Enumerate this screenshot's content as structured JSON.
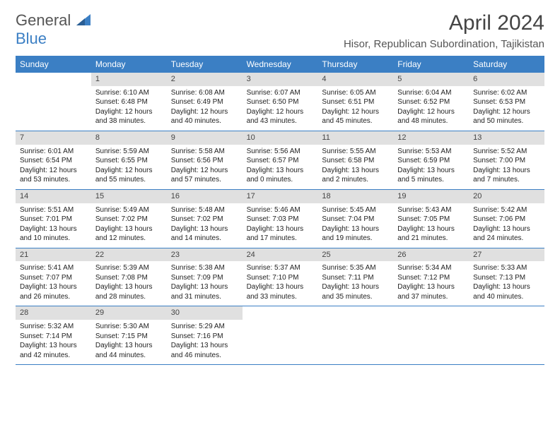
{
  "logo": {
    "text1": "General",
    "text2": "Blue"
  },
  "title": "April 2024",
  "location": "Hisor, Republican Subordination, Tajikistan",
  "colors": {
    "header_bg": "#3b7fc4",
    "header_text": "#ffffff",
    "daybar_bg": "#e0e0e0",
    "border": "#3b7fc4",
    "body_text": "#222222",
    "title_text": "#444444"
  },
  "weekdays": [
    "Sunday",
    "Monday",
    "Tuesday",
    "Wednesday",
    "Thursday",
    "Friday",
    "Saturday"
  ],
  "weeks": [
    [
      {
        "n": "",
        "sr": "",
        "ss": "",
        "d1": "",
        "d2": ""
      },
      {
        "n": "1",
        "sr": "Sunrise: 6:10 AM",
        "ss": "Sunset: 6:48 PM",
        "d1": "Daylight: 12 hours",
        "d2": "and 38 minutes."
      },
      {
        "n": "2",
        "sr": "Sunrise: 6:08 AM",
        "ss": "Sunset: 6:49 PM",
        "d1": "Daylight: 12 hours",
        "d2": "and 40 minutes."
      },
      {
        "n": "3",
        "sr": "Sunrise: 6:07 AM",
        "ss": "Sunset: 6:50 PM",
        "d1": "Daylight: 12 hours",
        "d2": "and 43 minutes."
      },
      {
        "n": "4",
        "sr": "Sunrise: 6:05 AM",
        "ss": "Sunset: 6:51 PM",
        "d1": "Daylight: 12 hours",
        "d2": "and 45 minutes."
      },
      {
        "n": "5",
        "sr": "Sunrise: 6:04 AM",
        "ss": "Sunset: 6:52 PM",
        "d1": "Daylight: 12 hours",
        "d2": "and 48 minutes."
      },
      {
        "n": "6",
        "sr": "Sunrise: 6:02 AM",
        "ss": "Sunset: 6:53 PM",
        "d1": "Daylight: 12 hours",
        "d2": "and 50 minutes."
      }
    ],
    [
      {
        "n": "7",
        "sr": "Sunrise: 6:01 AM",
        "ss": "Sunset: 6:54 PM",
        "d1": "Daylight: 12 hours",
        "d2": "and 53 minutes."
      },
      {
        "n": "8",
        "sr": "Sunrise: 5:59 AM",
        "ss": "Sunset: 6:55 PM",
        "d1": "Daylight: 12 hours",
        "d2": "and 55 minutes."
      },
      {
        "n": "9",
        "sr": "Sunrise: 5:58 AM",
        "ss": "Sunset: 6:56 PM",
        "d1": "Daylight: 12 hours",
        "d2": "and 57 minutes."
      },
      {
        "n": "10",
        "sr": "Sunrise: 5:56 AM",
        "ss": "Sunset: 6:57 PM",
        "d1": "Daylight: 13 hours",
        "d2": "and 0 minutes."
      },
      {
        "n": "11",
        "sr": "Sunrise: 5:55 AM",
        "ss": "Sunset: 6:58 PM",
        "d1": "Daylight: 13 hours",
        "d2": "and 2 minutes."
      },
      {
        "n": "12",
        "sr": "Sunrise: 5:53 AM",
        "ss": "Sunset: 6:59 PM",
        "d1": "Daylight: 13 hours",
        "d2": "and 5 minutes."
      },
      {
        "n": "13",
        "sr": "Sunrise: 5:52 AM",
        "ss": "Sunset: 7:00 PM",
        "d1": "Daylight: 13 hours",
        "d2": "and 7 minutes."
      }
    ],
    [
      {
        "n": "14",
        "sr": "Sunrise: 5:51 AM",
        "ss": "Sunset: 7:01 PM",
        "d1": "Daylight: 13 hours",
        "d2": "and 10 minutes."
      },
      {
        "n": "15",
        "sr": "Sunrise: 5:49 AM",
        "ss": "Sunset: 7:02 PM",
        "d1": "Daylight: 13 hours",
        "d2": "and 12 minutes."
      },
      {
        "n": "16",
        "sr": "Sunrise: 5:48 AM",
        "ss": "Sunset: 7:02 PM",
        "d1": "Daylight: 13 hours",
        "d2": "and 14 minutes."
      },
      {
        "n": "17",
        "sr": "Sunrise: 5:46 AM",
        "ss": "Sunset: 7:03 PM",
        "d1": "Daylight: 13 hours",
        "d2": "and 17 minutes."
      },
      {
        "n": "18",
        "sr": "Sunrise: 5:45 AM",
        "ss": "Sunset: 7:04 PM",
        "d1": "Daylight: 13 hours",
        "d2": "and 19 minutes."
      },
      {
        "n": "19",
        "sr": "Sunrise: 5:43 AM",
        "ss": "Sunset: 7:05 PM",
        "d1": "Daylight: 13 hours",
        "d2": "and 21 minutes."
      },
      {
        "n": "20",
        "sr": "Sunrise: 5:42 AM",
        "ss": "Sunset: 7:06 PM",
        "d1": "Daylight: 13 hours",
        "d2": "and 24 minutes."
      }
    ],
    [
      {
        "n": "21",
        "sr": "Sunrise: 5:41 AM",
        "ss": "Sunset: 7:07 PM",
        "d1": "Daylight: 13 hours",
        "d2": "and 26 minutes."
      },
      {
        "n": "22",
        "sr": "Sunrise: 5:39 AM",
        "ss": "Sunset: 7:08 PM",
        "d1": "Daylight: 13 hours",
        "d2": "and 28 minutes."
      },
      {
        "n": "23",
        "sr": "Sunrise: 5:38 AM",
        "ss": "Sunset: 7:09 PM",
        "d1": "Daylight: 13 hours",
        "d2": "and 31 minutes."
      },
      {
        "n": "24",
        "sr": "Sunrise: 5:37 AM",
        "ss": "Sunset: 7:10 PM",
        "d1": "Daylight: 13 hours",
        "d2": "and 33 minutes."
      },
      {
        "n": "25",
        "sr": "Sunrise: 5:35 AM",
        "ss": "Sunset: 7:11 PM",
        "d1": "Daylight: 13 hours",
        "d2": "and 35 minutes."
      },
      {
        "n": "26",
        "sr": "Sunrise: 5:34 AM",
        "ss": "Sunset: 7:12 PM",
        "d1": "Daylight: 13 hours",
        "d2": "and 37 minutes."
      },
      {
        "n": "27",
        "sr": "Sunrise: 5:33 AM",
        "ss": "Sunset: 7:13 PM",
        "d1": "Daylight: 13 hours",
        "d2": "and 40 minutes."
      }
    ],
    [
      {
        "n": "28",
        "sr": "Sunrise: 5:32 AM",
        "ss": "Sunset: 7:14 PM",
        "d1": "Daylight: 13 hours",
        "d2": "and 42 minutes."
      },
      {
        "n": "29",
        "sr": "Sunrise: 5:30 AM",
        "ss": "Sunset: 7:15 PM",
        "d1": "Daylight: 13 hours",
        "d2": "and 44 minutes."
      },
      {
        "n": "30",
        "sr": "Sunrise: 5:29 AM",
        "ss": "Sunset: 7:16 PM",
        "d1": "Daylight: 13 hours",
        "d2": "and 46 minutes."
      },
      {
        "n": "",
        "sr": "",
        "ss": "",
        "d1": "",
        "d2": ""
      },
      {
        "n": "",
        "sr": "",
        "ss": "",
        "d1": "",
        "d2": ""
      },
      {
        "n": "",
        "sr": "",
        "ss": "",
        "d1": "",
        "d2": ""
      },
      {
        "n": "",
        "sr": "",
        "ss": "",
        "d1": "",
        "d2": ""
      }
    ]
  ]
}
